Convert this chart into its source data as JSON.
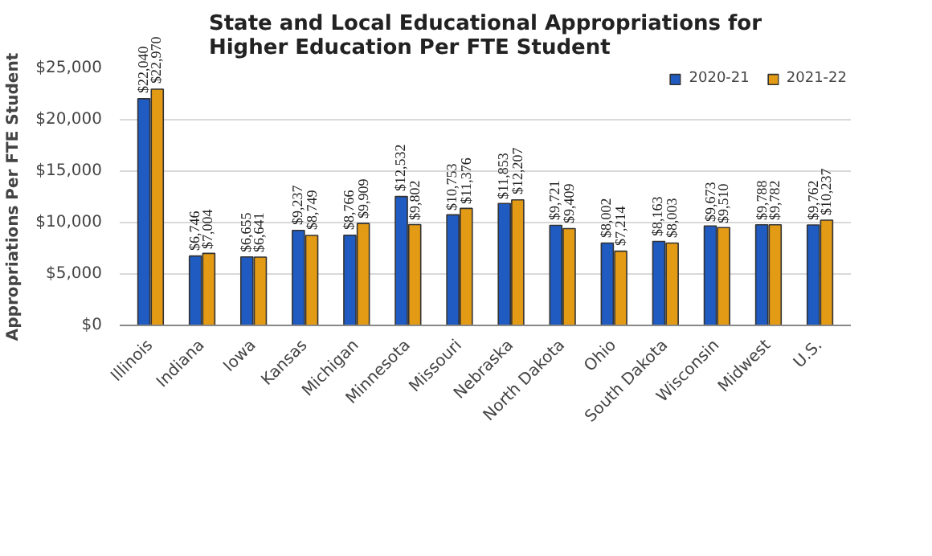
{
  "chart_data": {
    "type": "bar",
    "title": "State and Local Educational Appropriations for Higher Education Per FTE Student",
    "ylabel": "Appropriations Per FTE Student",
    "categories": [
      "Illinois",
      "Indiana",
      "Iowa",
      "Kansas",
      "Michigan",
      "Minnesota",
      "Missouri",
      "Nebraska",
      "North Dakota",
      "Ohio",
      "South Dakota",
      "Wisconsin",
      "Midwest",
      "U.S."
    ],
    "series": [
      {
        "name": "2020-21",
        "color": "#1f5bc0",
        "values": [
          22040,
          6746,
          6655,
          9237,
          8766,
          12532,
          10753,
          11853,
          9721,
          8002,
          8163,
          9673,
          9788,
          9762
        ],
        "value_labels": [
          "$22,040",
          "$6,746",
          "$6,655",
          "$9,237",
          "$8,766",
          "$12,532",
          "$10,753",
          "$11,853",
          "$9,721",
          "$8,002",
          "$8,163",
          "$9,673",
          "$9,788",
          "$9,762"
        ]
      },
      {
        "name": "2021-22",
        "color": "#e39a14",
        "values": [
          22970,
          7004,
          6641,
          8749,
          9909,
          9802,
          11376,
          12207,
          9409,
          7214,
          8003,
          9510,
          9782,
          10237
        ],
        "value_labels": [
          "$22,970",
          "$7,004",
          "$6,641",
          "$8,749",
          "$9,909",
          "$9,802",
          "$11,376",
          "$12,207",
          "$9,409",
          "$7,214",
          "$8,003",
          "$9,510",
          "$9,782",
          "$10,237"
        ]
      }
    ],
    "ylim": [
      0,
      25000
    ],
    "yticks": [
      {
        "value": 0,
        "label": "$0"
      },
      {
        "value": 5000,
        "label": "$5,000"
      },
      {
        "value": 10000,
        "label": "$10,000"
      },
      {
        "value": 15000,
        "label": "$15,000"
      },
      {
        "value": 20000,
        "label": "$20,000"
      },
      {
        "value": 25000,
        "label": "$25,000"
      }
    ],
    "grid": "y",
    "legend": "top right"
  }
}
